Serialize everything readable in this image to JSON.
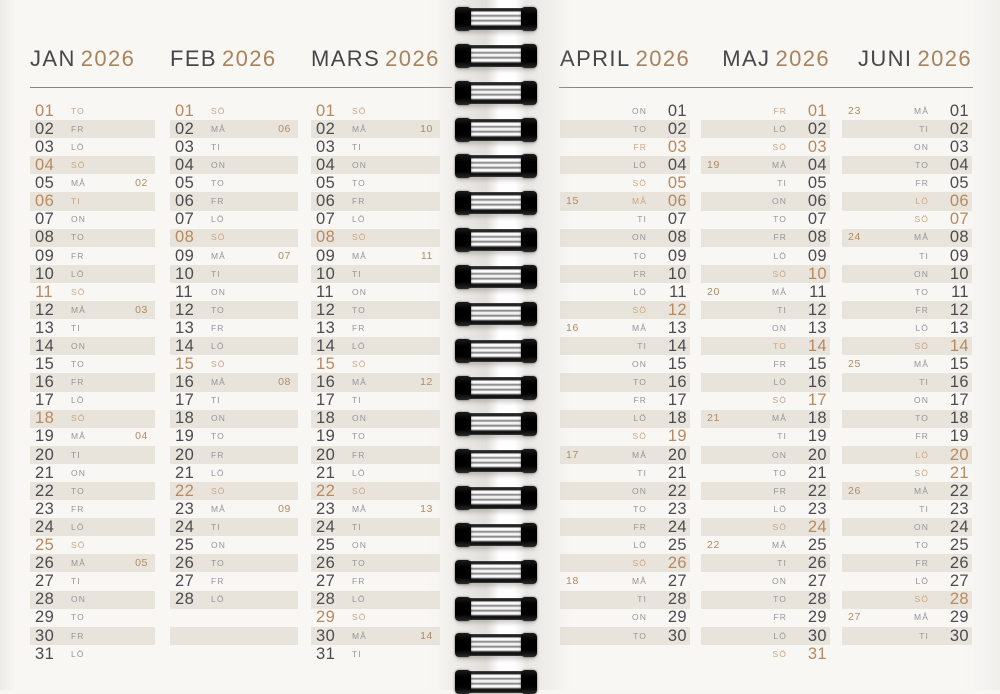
{
  "months": [
    {
      "name": "JAN",
      "year": "2026",
      "days": [
        {
          "d": "01",
          "w": "TO",
          "h": true
        },
        {
          "d": "02",
          "w": "FR"
        },
        {
          "d": "03",
          "w": "LÖ"
        },
        {
          "d": "04",
          "w": "SÖ",
          "h": true
        },
        {
          "d": "05",
          "w": "MÅ",
          "k": "02"
        },
        {
          "d": "06",
          "w": "TI",
          "h": true
        },
        {
          "d": "07",
          "w": "ON"
        },
        {
          "d": "08",
          "w": "TO"
        },
        {
          "d": "09",
          "w": "FR"
        },
        {
          "d": "10",
          "w": "LÖ"
        },
        {
          "d": "11",
          "w": "SÖ",
          "h": true
        },
        {
          "d": "12",
          "w": "MÅ",
          "k": "03"
        },
        {
          "d": "13",
          "w": "TI"
        },
        {
          "d": "14",
          "w": "ON"
        },
        {
          "d": "15",
          "w": "TO"
        },
        {
          "d": "16",
          "w": "FR"
        },
        {
          "d": "17",
          "w": "LÖ"
        },
        {
          "d": "18",
          "w": "SÖ",
          "h": true
        },
        {
          "d": "19",
          "w": "MÅ",
          "k": "04"
        },
        {
          "d": "20",
          "w": "TI"
        },
        {
          "d": "21",
          "w": "ON"
        },
        {
          "d": "22",
          "w": "TO"
        },
        {
          "d": "23",
          "w": "FR"
        },
        {
          "d": "24",
          "w": "LÖ"
        },
        {
          "d": "25",
          "w": "SÖ",
          "h": true
        },
        {
          "d": "26",
          "w": "MÅ",
          "k": "05"
        },
        {
          "d": "27",
          "w": "TI"
        },
        {
          "d": "28",
          "w": "ON"
        },
        {
          "d": "29",
          "w": "TO"
        },
        {
          "d": "30",
          "w": "FR"
        },
        {
          "d": "31",
          "w": "LÖ"
        }
      ]
    },
    {
      "name": "FEB",
      "year": "2026",
      "days": [
        {
          "d": "01",
          "w": "SÖ",
          "h": true
        },
        {
          "d": "02",
          "w": "MÅ",
          "k": "06"
        },
        {
          "d": "03",
          "w": "TI"
        },
        {
          "d": "04",
          "w": "ON"
        },
        {
          "d": "05",
          "w": "TO"
        },
        {
          "d": "06",
          "w": "FR"
        },
        {
          "d": "07",
          "w": "LÖ"
        },
        {
          "d": "08",
          "w": "SÖ",
          "h": true
        },
        {
          "d": "09",
          "w": "MÅ",
          "k": "07"
        },
        {
          "d": "10",
          "w": "TI"
        },
        {
          "d": "11",
          "w": "ON"
        },
        {
          "d": "12",
          "w": "TO"
        },
        {
          "d": "13",
          "w": "FR"
        },
        {
          "d": "14",
          "w": "LÖ"
        },
        {
          "d": "15",
          "w": "SÖ",
          "h": true
        },
        {
          "d": "16",
          "w": "MÅ",
          "k": "08"
        },
        {
          "d": "17",
          "w": "TI"
        },
        {
          "d": "18",
          "w": "ON"
        },
        {
          "d": "19",
          "w": "TO"
        },
        {
          "d": "20",
          "w": "FR"
        },
        {
          "d": "21",
          "w": "LÖ"
        },
        {
          "d": "22",
          "w": "SÖ",
          "h": true
        },
        {
          "d": "23",
          "w": "MÅ",
          "k": "09"
        },
        {
          "d": "24",
          "w": "TI"
        },
        {
          "d": "25",
          "w": "ON"
        },
        {
          "d": "26",
          "w": "TO"
        },
        {
          "d": "27",
          "w": "FR"
        },
        {
          "d": "28",
          "w": "LÖ"
        }
      ]
    },
    {
      "name": "MARS",
      "year": "2026",
      "days": [
        {
          "d": "01",
          "w": "SÖ",
          "h": true
        },
        {
          "d": "02",
          "w": "MÅ",
          "k": "10"
        },
        {
          "d": "03",
          "w": "TI"
        },
        {
          "d": "04",
          "w": "ON"
        },
        {
          "d": "05",
          "w": "TO"
        },
        {
          "d": "06",
          "w": "FR"
        },
        {
          "d": "07",
          "w": "LÖ"
        },
        {
          "d": "08",
          "w": "SÖ",
          "h": true
        },
        {
          "d": "09",
          "w": "MÅ",
          "k": "11"
        },
        {
          "d": "10",
          "w": "TI"
        },
        {
          "d": "11",
          "w": "ON"
        },
        {
          "d": "12",
          "w": "TO"
        },
        {
          "d": "13",
          "w": "FR"
        },
        {
          "d": "14",
          "w": "LÖ"
        },
        {
          "d": "15",
          "w": "SÖ",
          "h": true
        },
        {
          "d": "16",
          "w": "MÅ",
          "k": "12"
        },
        {
          "d": "17",
          "w": "TI"
        },
        {
          "d": "18",
          "w": "ON"
        },
        {
          "d": "19",
          "w": "TO"
        },
        {
          "d": "20",
          "w": "FR"
        },
        {
          "d": "21",
          "w": "LÖ"
        },
        {
          "d": "22",
          "w": "SÖ",
          "h": true
        },
        {
          "d": "23",
          "w": "MÅ",
          "k": "13"
        },
        {
          "d": "24",
          "w": "TI"
        },
        {
          "d": "25",
          "w": "ON"
        },
        {
          "d": "26",
          "w": "TO"
        },
        {
          "d": "27",
          "w": "FR"
        },
        {
          "d": "28",
          "w": "LÖ"
        },
        {
          "d": "29",
          "w": "SÖ",
          "h": true
        },
        {
          "d": "30",
          "w": "MÅ",
          "k": "14"
        },
        {
          "d": "31",
          "w": "TI"
        }
      ]
    },
    {
      "name": "APRIL",
      "year": "2026",
      "days": [
        {
          "d": "01",
          "w": "ON"
        },
        {
          "d": "02",
          "w": "TO"
        },
        {
          "d": "03",
          "w": "FR",
          "h": true
        },
        {
          "d": "04",
          "w": "LÖ"
        },
        {
          "d": "05",
          "w": "SÖ",
          "h": true
        },
        {
          "d": "06",
          "w": "MÅ",
          "k": "15",
          "h": true
        },
        {
          "d": "07",
          "w": "TI"
        },
        {
          "d": "08",
          "w": "ON"
        },
        {
          "d": "09",
          "w": "TO"
        },
        {
          "d": "10",
          "w": "FR"
        },
        {
          "d": "11",
          "w": "LÖ"
        },
        {
          "d": "12",
          "w": "SÖ",
          "h": true
        },
        {
          "d": "13",
          "w": "MÅ",
          "k": "16"
        },
        {
          "d": "14",
          "w": "TI"
        },
        {
          "d": "15",
          "w": "ON"
        },
        {
          "d": "16",
          "w": "TO"
        },
        {
          "d": "17",
          "w": "FR"
        },
        {
          "d": "18",
          "w": "LÖ"
        },
        {
          "d": "19",
          "w": "SÖ",
          "h": true
        },
        {
          "d": "20",
          "w": "MÅ",
          "k": "17"
        },
        {
          "d": "21",
          "w": "TI"
        },
        {
          "d": "22",
          "w": "ON"
        },
        {
          "d": "23",
          "w": "TO"
        },
        {
          "d": "24",
          "w": "FR"
        },
        {
          "d": "25",
          "w": "LÖ"
        },
        {
          "d": "26",
          "w": "SÖ",
          "h": true
        },
        {
          "d": "27",
          "w": "MÅ",
          "k": "18"
        },
        {
          "d": "28",
          "w": "TI"
        },
        {
          "d": "29",
          "w": "ON"
        },
        {
          "d": "30",
          "w": "TO"
        }
      ]
    },
    {
      "name": "MAJ",
      "year": "2026",
      "days": [
        {
          "d": "01",
          "w": "FR",
          "h": true
        },
        {
          "d": "02",
          "w": "LÖ"
        },
        {
          "d": "03",
          "w": "SÖ",
          "h": true
        },
        {
          "d": "04",
          "w": "MÅ",
          "k": "19"
        },
        {
          "d": "05",
          "w": "TI"
        },
        {
          "d": "06",
          "w": "ON"
        },
        {
          "d": "07",
          "w": "TO"
        },
        {
          "d": "08",
          "w": "FR"
        },
        {
          "d": "09",
          "w": "LÖ"
        },
        {
          "d": "10",
          "w": "SÖ",
          "h": true
        },
        {
          "d": "11",
          "w": "MÅ",
          "k": "20"
        },
        {
          "d": "12",
          "w": "TI"
        },
        {
          "d": "13",
          "w": "ON"
        },
        {
          "d": "14",
          "w": "TO",
          "h": true
        },
        {
          "d": "15",
          "w": "FR"
        },
        {
          "d": "16",
          "w": "LÖ"
        },
        {
          "d": "17",
          "w": "SÖ",
          "h": true
        },
        {
          "d": "18",
          "w": "MÅ",
          "k": "21"
        },
        {
          "d": "19",
          "w": "TI"
        },
        {
          "d": "20",
          "w": "ON"
        },
        {
          "d": "21",
          "w": "TO"
        },
        {
          "d": "22",
          "w": "FR"
        },
        {
          "d": "23",
          "w": "LÖ"
        },
        {
          "d": "24",
          "w": "SÖ",
          "h": true
        },
        {
          "d": "25",
          "w": "MÅ",
          "k": "22"
        },
        {
          "d": "26",
          "w": "TI"
        },
        {
          "d": "27",
          "w": "ON"
        },
        {
          "d": "28",
          "w": "TO"
        },
        {
          "d": "29",
          "w": "FR"
        },
        {
          "d": "30",
          "w": "LÖ"
        },
        {
          "d": "31",
          "w": "SÖ",
          "h": true
        }
      ]
    },
    {
      "name": "JUNI",
      "year": "2026",
      "days": [
        {
          "d": "01",
          "w": "MÅ",
          "k": "23"
        },
        {
          "d": "02",
          "w": "TI"
        },
        {
          "d": "03",
          "w": "ON"
        },
        {
          "d": "04",
          "w": "TO"
        },
        {
          "d": "05",
          "w": "FR"
        },
        {
          "d": "06",
          "w": "LÖ",
          "h": true
        },
        {
          "d": "07",
          "w": "SÖ",
          "h": true
        },
        {
          "d": "08",
          "w": "MÅ",
          "k": "24"
        },
        {
          "d": "09",
          "w": "TI"
        },
        {
          "d": "10",
          "w": "ON"
        },
        {
          "d": "11",
          "w": "TO"
        },
        {
          "d": "12",
          "w": "FR"
        },
        {
          "d": "13",
          "w": "LÖ"
        },
        {
          "d": "14",
          "w": "SÖ",
          "h": true
        },
        {
          "d": "15",
          "w": "MÅ",
          "k": "25"
        },
        {
          "d": "16",
          "w": "TI"
        },
        {
          "d": "17",
          "w": "ON"
        },
        {
          "d": "18",
          "w": "TO"
        },
        {
          "d": "19",
          "w": "FR"
        },
        {
          "d": "20",
          "w": "LÖ",
          "h": true
        },
        {
          "d": "21",
          "w": "SÖ",
          "h": true
        },
        {
          "d": "22",
          "w": "MÅ",
          "k": "26"
        },
        {
          "d": "23",
          "w": "TI"
        },
        {
          "d": "24",
          "w": "ON"
        },
        {
          "d": "25",
          "w": "TO"
        },
        {
          "d": "26",
          "w": "FR"
        },
        {
          "d": "27",
          "w": "LÖ"
        },
        {
          "d": "28",
          "w": "SÖ",
          "h": true
        },
        {
          "d": "29",
          "w": "MÅ",
          "k": "27"
        },
        {
          "d": "30",
          "w": "TI"
        }
      ]
    }
  ],
  "colors": {
    "page": "#f7f6f3",
    "stripe": "#e9e4db",
    "month_name": "#47464a",
    "year_accent": "#a8835b",
    "day_number": "#4c4b50",
    "weekday": "#95949a",
    "week_number": "#b08a61",
    "holiday_number": "#b8895e",
    "holiday_weekday": "#c8a584",
    "title_rule": "#8e887c"
  }
}
